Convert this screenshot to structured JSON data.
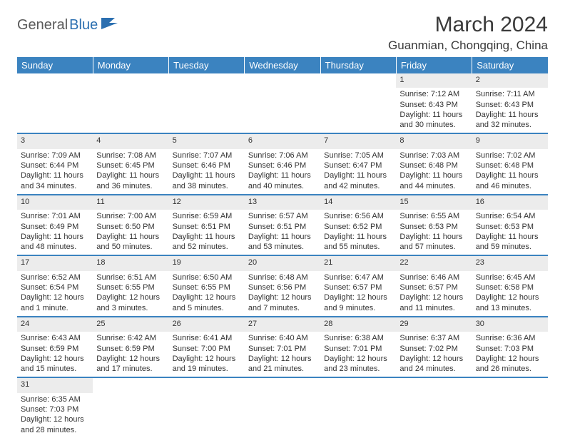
{
  "logo": {
    "brand1": "General",
    "brand2": "Blue"
  },
  "title": "March 2024",
  "location": "Guanmian, Chongqing, China",
  "colors": {
    "header_bg": "#3b83c0",
    "header_fg": "#ffffff",
    "daynum_bg": "#ececec",
    "row_border": "#3b83c0",
    "text": "#333333",
    "logo_gray": "#5a5a5a",
    "logo_blue": "#2b6fb0"
  },
  "dayNames": [
    "Sunday",
    "Monday",
    "Tuesday",
    "Wednesday",
    "Thursday",
    "Friday",
    "Saturday"
  ],
  "weeks": [
    [
      null,
      null,
      null,
      null,
      null,
      {
        "n": "1",
        "sr": "7:12 AM",
        "ss": "6:43 PM",
        "dl": "11 hours and 30 minutes."
      },
      {
        "n": "2",
        "sr": "7:11 AM",
        "ss": "6:43 PM",
        "dl": "11 hours and 32 minutes."
      }
    ],
    [
      {
        "n": "3",
        "sr": "7:09 AM",
        "ss": "6:44 PM",
        "dl": "11 hours and 34 minutes."
      },
      {
        "n": "4",
        "sr": "7:08 AM",
        "ss": "6:45 PM",
        "dl": "11 hours and 36 minutes."
      },
      {
        "n": "5",
        "sr": "7:07 AM",
        "ss": "6:46 PM",
        "dl": "11 hours and 38 minutes."
      },
      {
        "n": "6",
        "sr": "7:06 AM",
        "ss": "6:46 PM",
        "dl": "11 hours and 40 minutes."
      },
      {
        "n": "7",
        "sr": "7:05 AM",
        "ss": "6:47 PM",
        "dl": "11 hours and 42 minutes."
      },
      {
        "n": "8",
        "sr": "7:03 AM",
        "ss": "6:48 PM",
        "dl": "11 hours and 44 minutes."
      },
      {
        "n": "9",
        "sr": "7:02 AM",
        "ss": "6:48 PM",
        "dl": "11 hours and 46 minutes."
      }
    ],
    [
      {
        "n": "10",
        "sr": "7:01 AM",
        "ss": "6:49 PM",
        "dl": "11 hours and 48 minutes."
      },
      {
        "n": "11",
        "sr": "7:00 AM",
        "ss": "6:50 PM",
        "dl": "11 hours and 50 minutes."
      },
      {
        "n": "12",
        "sr": "6:59 AM",
        "ss": "6:51 PM",
        "dl": "11 hours and 52 minutes."
      },
      {
        "n": "13",
        "sr": "6:57 AM",
        "ss": "6:51 PM",
        "dl": "11 hours and 53 minutes."
      },
      {
        "n": "14",
        "sr": "6:56 AM",
        "ss": "6:52 PM",
        "dl": "11 hours and 55 minutes."
      },
      {
        "n": "15",
        "sr": "6:55 AM",
        "ss": "6:53 PM",
        "dl": "11 hours and 57 minutes."
      },
      {
        "n": "16",
        "sr": "6:54 AM",
        "ss": "6:53 PM",
        "dl": "11 hours and 59 minutes."
      }
    ],
    [
      {
        "n": "17",
        "sr": "6:52 AM",
        "ss": "6:54 PM",
        "dl": "12 hours and 1 minute."
      },
      {
        "n": "18",
        "sr": "6:51 AM",
        "ss": "6:55 PM",
        "dl": "12 hours and 3 minutes."
      },
      {
        "n": "19",
        "sr": "6:50 AM",
        "ss": "6:55 PM",
        "dl": "12 hours and 5 minutes."
      },
      {
        "n": "20",
        "sr": "6:48 AM",
        "ss": "6:56 PM",
        "dl": "12 hours and 7 minutes."
      },
      {
        "n": "21",
        "sr": "6:47 AM",
        "ss": "6:57 PM",
        "dl": "12 hours and 9 minutes."
      },
      {
        "n": "22",
        "sr": "6:46 AM",
        "ss": "6:57 PM",
        "dl": "12 hours and 11 minutes."
      },
      {
        "n": "23",
        "sr": "6:45 AM",
        "ss": "6:58 PM",
        "dl": "12 hours and 13 minutes."
      }
    ],
    [
      {
        "n": "24",
        "sr": "6:43 AM",
        "ss": "6:59 PM",
        "dl": "12 hours and 15 minutes."
      },
      {
        "n": "25",
        "sr": "6:42 AM",
        "ss": "6:59 PM",
        "dl": "12 hours and 17 minutes."
      },
      {
        "n": "26",
        "sr": "6:41 AM",
        "ss": "7:00 PM",
        "dl": "12 hours and 19 minutes."
      },
      {
        "n": "27",
        "sr": "6:40 AM",
        "ss": "7:01 PM",
        "dl": "12 hours and 21 minutes."
      },
      {
        "n": "28",
        "sr": "6:38 AM",
        "ss": "7:01 PM",
        "dl": "12 hours and 23 minutes."
      },
      {
        "n": "29",
        "sr": "6:37 AM",
        "ss": "7:02 PM",
        "dl": "12 hours and 24 minutes."
      },
      {
        "n": "30",
        "sr": "6:36 AM",
        "ss": "7:03 PM",
        "dl": "12 hours and 26 minutes."
      }
    ],
    [
      {
        "n": "31",
        "sr": "6:35 AM",
        "ss": "7:03 PM",
        "dl": "12 hours and 28 minutes."
      },
      null,
      null,
      null,
      null,
      null,
      null
    ]
  ],
  "labels": {
    "sunrise": "Sunrise:",
    "sunset": "Sunset:",
    "daylight": "Daylight:"
  }
}
